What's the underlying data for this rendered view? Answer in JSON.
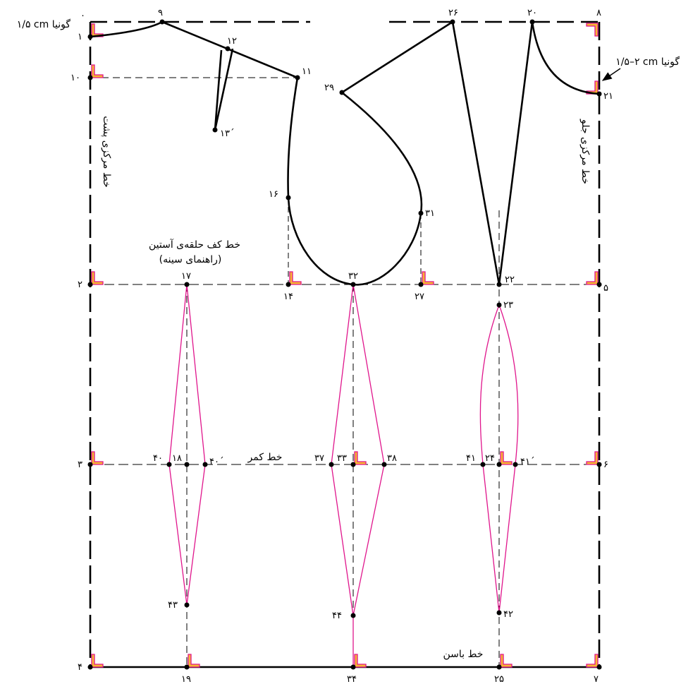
{
  "points": {
    "p0": "۰",
    "p1": "۱",
    "p2": "۲",
    "p3": "۳",
    "p4": "۴",
    "p5": "۵",
    "p6": "۶",
    "p7": "۷",
    "p8": "۸",
    "p9": "۹",
    "p10": "۱۰",
    "p11": "۱۱",
    "p12": "۱۲",
    "p13": "۱۳´",
    "p14": "۱۴",
    "p16": "۱۶",
    "p17": "۱۷",
    "p18": "۱۸",
    "p19": "۱۹",
    "p20": "۲۰",
    "p21": "۲۱",
    "p22": "۲۲",
    "p23": "۲۳",
    "p24": "۲۴",
    "p25": "۲۵",
    "p26": "۲۶",
    "p27": "۲۷",
    "p29": "۲۹",
    "p31": "۳۱",
    "p32": "۳۲",
    "p33": "۳۳",
    "p34": "۳۴",
    "p37": "۳۷",
    "p38": "۳۸",
    "p40": "۴۰",
    "p40p": "۴۰´",
    "p41": "۴۱",
    "p41p": "۴۱´",
    "p42": "۴۲",
    "p43": "۴۳",
    "p44": "۴۴"
  },
  "labels": {
    "back_square": "۱/۵ cm گونیا",
    "front_square": "۱/۵–۲ cm گونیا",
    "back_center_line": "خط مرکزی پشت",
    "front_center_line": "خط مرکزی جلو",
    "armhole_line": "خط کف حلقه‌ی آستین",
    "bust_guide": "(راهنمای سینه)",
    "waist_line": "خط کمر",
    "hip_line": "خط باسن"
  },
  "colors": {
    "outline": "#000000",
    "dart": "#e0158c",
    "square_fill": "#f7b733",
    "square_edge": "#e0158c"
  }
}
